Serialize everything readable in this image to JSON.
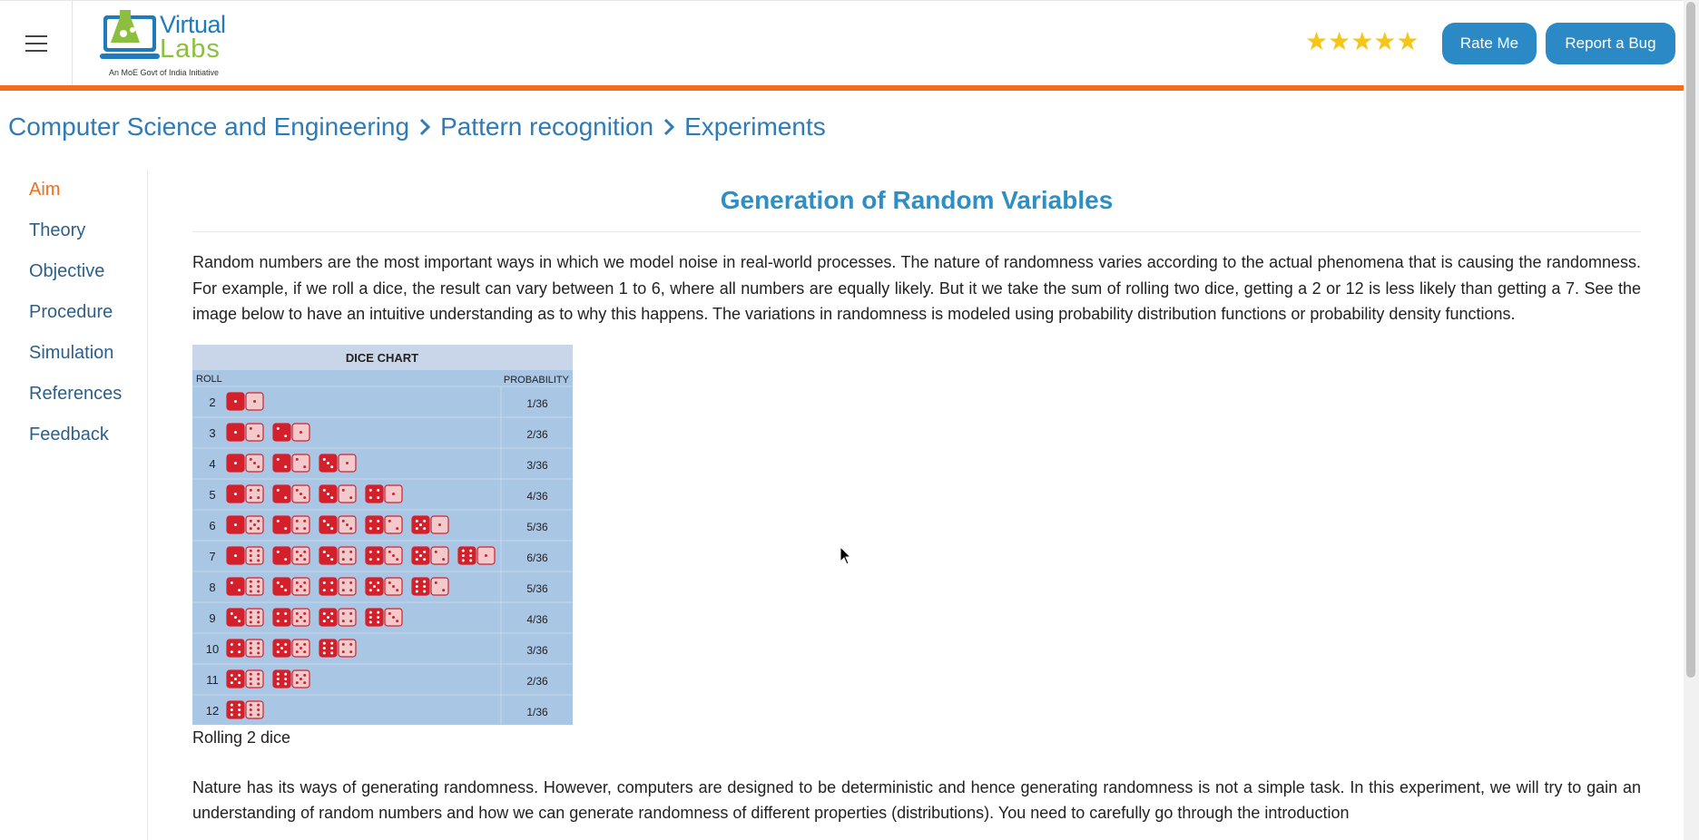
{
  "header": {
    "menu_icon": "hamburger-icon",
    "logo": {
      "brand_line1": "Virtual",
      "brand_line2": "Labs",
      "tagline": "An MoE Govt of India Initiative"
    },
    "rating": {
      "stars": "★★★★★",
      "value": 5,
      "max": 5
    },
    "rate_button": "Rate Me",
    "bug_button": "Report a Bug",
    "accent_color": "#f36d1e",
    "button_color": "#2b8ac6"
  },
  "breadcrumb": {
    "items": [
      "Computer Science and Engineering",
      "Pattern recognition",
      "Experiments"
    ]
  },
  "sidebar": {
    "items": [
      {
        "label": "Aim",
        "active": true
      },
      {
        "label": "Theory"
      },
      {
        "label": "Objective"
      },
      {
        "label": "Procedure"
      },
      {
        "label": "Simulation"
      },
      {
        "label": "References"
      },
      {
        "label": "Feedback"
      }
    ]
  },
  "content": {
    "title": "Generation of Random Variables",
    "paragraph1": "Random numbers are the most important ways in which we model noise in real-world processes. The nature of randomness varies according to the actual phenomena that is causing the randomness. For example, if we roll a dice, the result can vary between 1 to 6, where all numbers are equally likely. But it we take the sum of rolling two dice, getting a 2 or 12 is less likely than getting a 7. See the image below to have an intuitive understanding as to why this happens. The variations in randomness is modeled using probability distribution functions or probability density functions.",
    "figure_caption": "Rolling 2 dice",
    "paragraph2": "Nature has its ways of generating randomness. However, computers are designed to be deterministic and hence generating randomness is not a simple task. In this experiment, we will try to gain an understanding of random numbers and how we can generate randomness of different properties (distributions). You need to carefully go through the introduction"
  },
  "dice_chart": {
    "title": "DICE CHART",
    "col_roll": "ROLL",
    "col_prob": "PROBABILITY",
    "rows": [
      {
        "roll": "2",
        "combos": 1,
        "prob": "1/36"
      },
      {
        "roll": "3",
        "combos": 2,
        "prob": "2/36"
      },
      {
        "roll": "4",
        "combos": 3,
        "prob": "3/36"
      },
      {
        "roll": "5",
        "combos": 4,
        "prob": "4/36"
      },
      {
        "roll": "6",
        "combos": 5,
        "prob": "5/36"
      },
      {
        "roll": "7",
        "combos": 6,
        "prob": "6/36"
      },
      {
        "roll": "8",
        "combos": 5,
        "prob": "5/36"
      },
      {
        "roll": "9",
        "combos": 4,
        "prob": "4/36"
      },
      {
        "roll": "10",
        "combos": 3,
        "prob": "3/36"
      },
      {
        "roll": "11",
        "combos": 2,
        "prob": "2/36"
      },
      {
        "roll": "12",
        "combos": 1,
        "prob": "1/36"
      }
    ]
  }
}
